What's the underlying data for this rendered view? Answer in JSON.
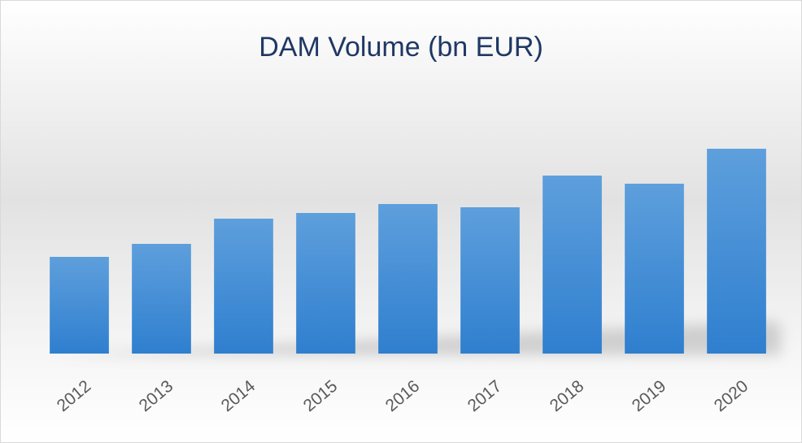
{
  "chart_data": {
    "type": "bar",
    "title": "DAM Volume (bn EUR)",
    "categories": [
      "2012",
      "2013",
      "2014",
      "2015",
      "2016",
      "2017",
      "2018",
      "2019",
      "2020"
    ],
    "values": [
      119,
      135,
      166,
      173,
      184,
      180,
      219,
      209,
      252
    ],
    "color": "#4a90d9",
    "ylim": [
      0,
      300
    ]
  }
}
